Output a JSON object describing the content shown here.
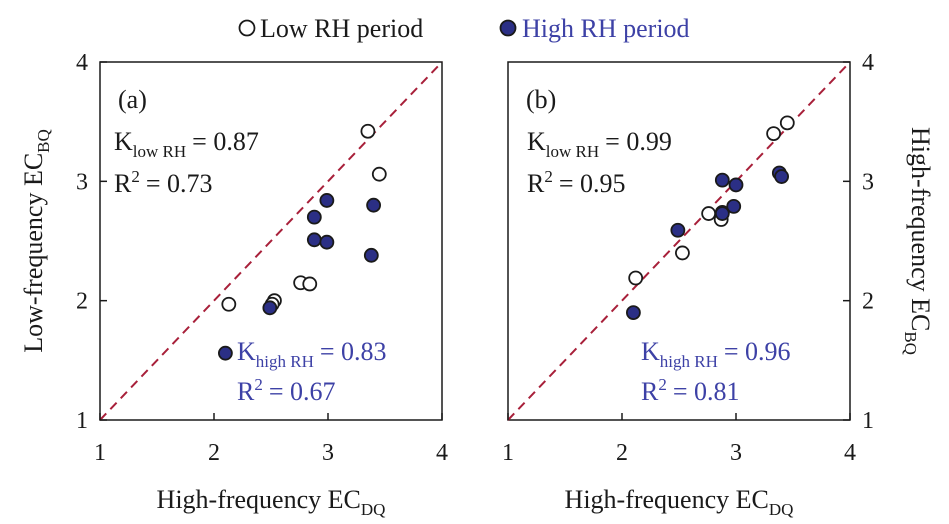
{
  "legend": {
    "low_label": "Low RH period",
    "high_label": "High RH period"
  },
  "colors": {
    "low_fill": "#ffffff",
    "high_fill": "#2b2f85",
    "high_text": "#3d41a6",
    "text": "#1a1a1a",
    "one_to_one": "#a8203a"
  },
  "chart_data": [
    {
      "type": "scatter",
      "panel_label": "(a)",
      "xlabel": {
        "main": "High-frequency EC",
        "sub": "DQ"
      },
      "ylabel": {
        "main": "Low-frequency EC",
        "sub": "BQ"
      },
      "xlim": [
        1,
        4
      ],
      "ylim": [
        1,
        4
      ],
      "ticks": [
        "1",
        "2",
        "3",
        "4"
      ],
      "one_to_one_line": true,
      "low_stats": {
        "k_letter": "K",
        "k_sub": "low RH",
        "k_value": "= 0.87",
        "r2_letter": "R",
        "r2_sup": "2",
        "r2_value": "= 0.73"
      },
      "high_stats": {
        "k_letter": "K",
        "k_sub": "high RH",
        "k_value": "= 0.83",
        "r2_letter": "R",
        "r2_sup": "2",
        "r2_value": "= 0.67"
      },
      "series": [
        {
          "name": "Low RH period",
          "points": [
            [
              2.13,
              1.97
            ],
            [
              2.53,
              2.0
            ],
            [
              2.51,
              1.97
            ],
            [
              2.76,
              2.15
            ],
            [
              2.84,
              2.14
            ],
            [
              3.35,
              3.42
            ],
            [
              3.45,
              3.06
            ]
          ]
        },
        {
          "name": "High RH period",
          "points": [
            [
              2.1,
              1.56
            ],
            [
              2.49,
              1.94
            ],
            [
              2.88,
              2.51
            ],
            [
              2.88,
              2.7
            ],
            [
              2.99,
              2.84
            ],
            [
              2.99,
              2.49
            ],
            [
              3.38,
              2.38
            ],
            [
              3.4,
              2.8
            ]
          ]
        }
      ]
    },
    {
      "type": "scatter",
      "panel_label": "(b)",
      "xlabel": {
        "main": "High-frequency EC",
        "sub": "DQ"
      },
      "ylabel": {
        "main": "High-frequency EC",
        "sub": "BQ"
      },
      "xlim": [
        1,
        4
      ],
      "ylim": [
        1,
        4
      ],
      "ticks": [
        "1",
        "2",
        "3",
        "4"
      ],
      "one_to_one_line": true,
      "low_stats": {
        "k_letter": "K",
        "k_sub": "low RH",
        "k_value": "= 0.99",
        "r2_letter": "R",
        "r2_sup": "2",
        "r2_value": "= 0.95"
      },
      "high_stats": {
        "k_letter": "K",
        "k_sub": "high RH",
        "k_value": "= 0.96",
        "r2_letter": "R",
        "r2_sup": "2",
        "r2_value": "= 0.81"
      },
      "series": [
        {
          "name": "Low RH period",
          "points": [
            [
              2.12,
              2.19
            ],
            [
              2.53,
              2.4
            ],
            [
              2.76,
              2.73
            ],
            [
              2.87,
              2.68
            ],
            [
              2.88,
              2.74
            ],
            [
              3.33,
              3.4
            ],
            [
              3.45,
              3.49
            ]
          ]
        },
        {
          "name": "High RH period",
          "points": [
            [
              2.1,
              1.9
            ],
            [
              2.49,
              2.59
            ],
            [
              2.88,
              3.01
            ],
            [
              2.88,
              2.73
            ],
            [
              2.98,
              2.79
            ],
            [
              3.0,
              2.97
            ],
            [
              3.38,
              3.07
            ],
            [
              3.4,
              3.04
            ]
          ]
        }
      ]
    }
  ]
}
